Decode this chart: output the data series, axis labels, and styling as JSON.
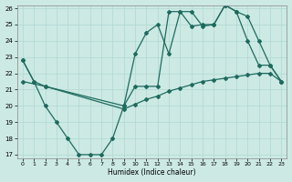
{
  "xlabel": "Humidex (Indice chaleur)",
  "bg_color": "#cce9e4",
  "line_color": "#1e6b5e",
  "grid_color": "#b0d8d0",
  "xlim": [
    -0.5,
    23.5
  ],
  "ylim": [
    17,
    26
  ],
  "yticks": [
    17,
    18,
    19,
    20,
    21,
    22,
    23,
    24,
    25,
    26
  ],
  "xticks": [
    0,
    1,
    2,
    3,
    4,
    5,
    6,
    7,
    8,
    9,
    10,
    11,
    12,
    13,
    14,
    15,
    16,
    17,
    18,
    19,
    20,
    21,
    22,
    23
  ],
  "line1_x": [
    0,
    1,
    2,
    3,
    4,
    5,
    6,
    7,
    8,
    9,
    10,
    11,
    12,
    13,
    14,
    15,
    16,
    17,
    18,
    19,
    20,
    21,
    22,
    23
  ],
  "line1_y": [
    22.8,
    21.5,
    20.0,
    19.0,
    18.0,
    17.0,
    17.0,
    17.0,
    18.0,
    20.0,
    21.2,
    21.2,
    21.2,
    25.8,
    25.8,
    24.9,
    25.0,
    25.0,
    26.2,
    25.8,
    24.0,
    22.5,
    22.5,
    21.5
  ],
  "line2_x": [
    0,
    1,
    2,
    9,
    10,
    11,
    12,
    13,
    14,
    15,
    16,
    17,
    18,
    19,
    20,
    21,
    22,
    23
  ],
  "line2_y": [
    22.8,
    21.5,
    21.2,
    20.0,
    23.2,
    24.5,
    25.0,
    23.2,
    25.8,
    25.8,
    24.9,
    25.0,
    26.2,
    25.8,
    25.5,
    24.0,
    22.5,
    21.5
  ],
  "line3_x": [
    0,
    2,
    9,
    10,
    11,
    12,
    13,
    14,
    15,
    16,
    17,
    18,
    19,
    20,
    21,
    22,
    23
  ],
  "line3_y": [
    21.5,
    21.2,
    19.8,
    20.1,
    20.4,
    20.6,
    20.9,
    21.1,
    21.3,
    21.5,
    21.6,
    21.7,
    21.8,
    21.9,
    22.0,
    22.0,
    21.5
  ]
}
